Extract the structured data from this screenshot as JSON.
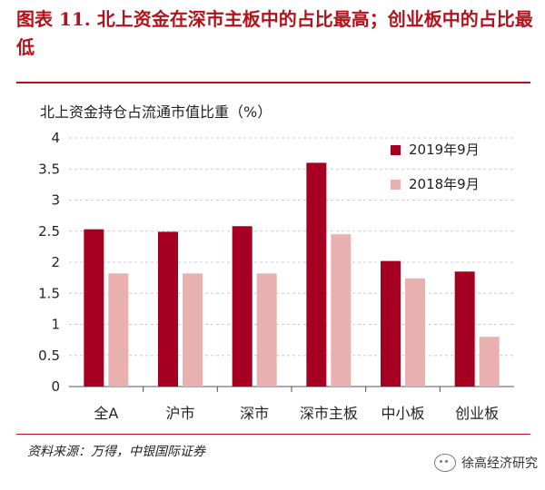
{
  "figure": {
    "title": "图表 11. 北上资金在深市主板中的占比最高；创业板中的占比最低",
    "source": "资料来源：万得，中银国际证券",
    "watermark": "徐高经济研究"
  },
  "colors": {
    "series1": "#a50021",
    "series2": "#e8b1b0",
    "grid": "#cccccc",
    "accent": "#b5121b"
  },
  "chart_data": {
    "type": "bar",
    "title": "",
    "ylabel": "北上资金持仓占流通市值比重（%）",
    "xlabel": "",
    "categories": [
      "全A",
      "沪市",
      "深市",
      "深市主板",
      "中小板",
      "创业板"
    ],
    "series": [
      {
        "name": "2019年9月",
        "values": [
          2.53,
          2.49,
          2.58,
          3.6,
          2.02,
          1.85
        ]
      },
      {
        "name": "2018年9月",
        "values": [
          1.82,
          1.82,
          1.82,
          2.45,
          1.74,
          0.8
        ]
      }
    ],
    "ylim": [
      0,
      4
    ],
    "yticks": [
      "0",
      "0.5",
      "1",
      "1.5",
      "2",
      "2.5",
      "3",
      "3.5",
      "4"
    ],
    "grid": "horizontal",
    "legend": "top-right"
  }
}
